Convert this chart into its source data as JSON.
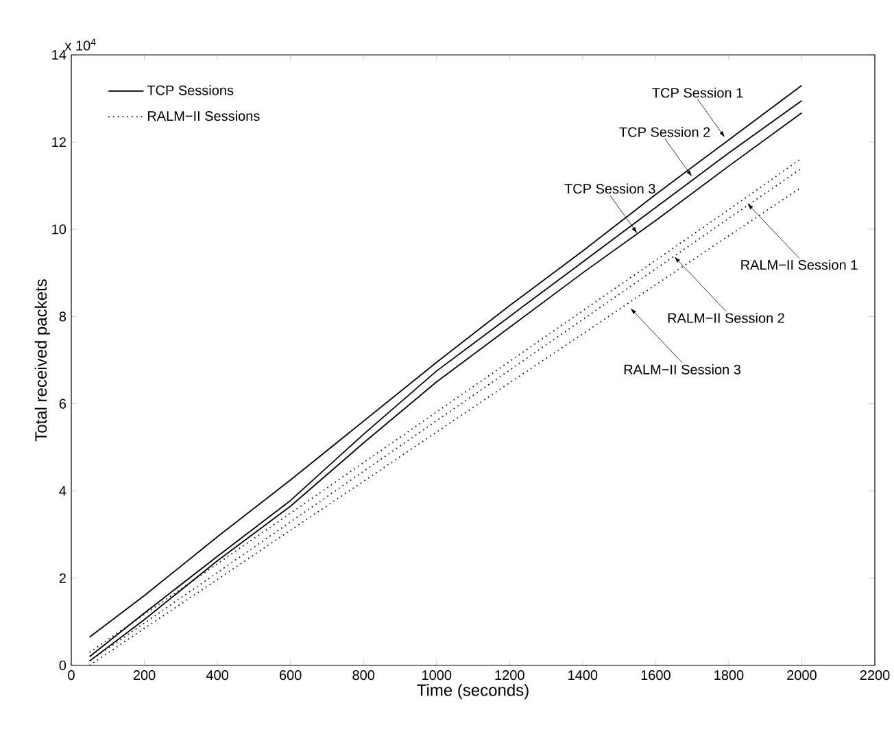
{
  "chart_data": {
    "type": "line",
    "xlabel": "Time (seconds)",
    "ylabel": "Total received packets",
    "annotations": [
      "x 10$^{4}$",
      {
        "text": "TCP Session 1",
        "x": 1790,
        "y": 12.1
      },
      {
        "text": "TCP Session 2",
        "x": 1700,
        "y": 11.2
      },
      {
        "text": "TCP Session 3",
        "x": 1550,
        "y": 9.9
      },
      {
        "text": "RALM−II Session 1",
        "x": 1850,
        "y": 10.6
      },
      {
        "text": "RALM−II Session 2",
        "x": 1650,
        "y": 9.38
      },
      {
        "text": "RALM−II Session 3",
        "x": 1530,
        "y": 8.2
      }
    ],
    "x": [
      50,
      200,
      400,
      600,
      800,
      1000,
      1200,
      1400,
      1600,
      1800,
      2000
    ],
    "series": [
      {
        "name": "TCP Sessions",
        "color": "#000000",
        "line_style": "solid",
        "values": [
          0.65,
          1.6,
          2.95,
          4.25,
          5.6,
          6.95,
          8.25,
          9.5,
          10.8,
          12.05,
          13.3
        ]
      },
      {
        "color": "#000000",
        "line_style": "solid",
        "values": [
          0.2,
          1.2,
          2.5,
          3.78,
          5.3,
          6.75,
          8.0,
          9.25,
          10.5,
          11.75,
          12.95
        ]
      },
      {
        "color": "#000000",
        "line_style": "solid",
        "values": [
          0.1,
          1.05,
          2.4,
          3.65,
          5.1,
          6.5,
          7.75,
          9.0,
          10.2,
          11.45,
          12.67
        ]
      },
      {
        "name": "RALM−II Sessions",
        "color": "#000000",
        "line_style": "dotted",
        "values": [
          0.3,
          1.17,
          2.33,
          3.49,
          4.65,
          5.81,
          6.97,
          8.13,
          9.29,
          10.45,
          11.63
        ]
      },
      {
        "color": "#000000",
        "line_style": "dotted",
        "values": [
          0.1,
          0.97,
          2.13,
          3.29,
          4.45,
          5.61,
          6.77,
          7.93,
          9.09,
          10.25,
          11.4
        ]
      },
      {
        "color": "#000000",
        "line_style": "dotted",
        "values": [
          0.0,
          0.85,
          1.97,
          3.1,
          4.22,
          5.35,
          6.48,
          7.6,
          8.73,
          9.85,
          10.97
        ]
      }
    ],
    "xlim": [
      0,
      2200
    ],
    "ylim": [
      0,
      14
    ],
    "xticks": [
      0,
      200,
      400,
      600,
      800,
      1000,
      1200,
      1400,
      1600,
      1800,
      2000,
      2200
    ],
    "yticks": [
      0,
      2,
      4,
      6,
      8,
      10,
      12,
      14
    ],
    "grid": false,
    "legend": "top left",
    "marker": "none"
  }
}
